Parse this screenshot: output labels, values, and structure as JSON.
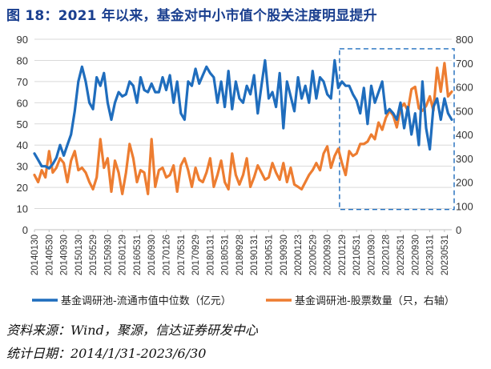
{
  "title": "图 18：2021 年以来，基金对中小市值个股关注度明显提升",
  "source": "资料来源：Wind，聚源，信达证券研发中心",
  "period": "统计日期：2014/1/31-2023/6/30",
  "colors": {
    "blue": "#1f6dbd",
    "orange": "#ed7d31",
    "highlight": "#1f6dbd"
  },
  "chart_data": {
    "type": "line",
    "title": "",
    "xlabel": "",
    "y_left": {
      "min": 0,
      "max": 90,
      "ticks": [
        0,
        10,
        20,
        30,
        40,
        50,
        60,
        70,
        80,
        90
      ]
    },
    "y_right": {
      "min": 0,
      "max": 800,
      "ticks": [
        0,
        100,
        200,
        300,
        400,
        500,
        600,
        700,
        800
      ]
    },
    "x_ticks": [
      "20140130",
      "20140530",
      "20140930",
      "20150130",
      "20150529",
      "20150930",
      "20160129",
      "20160531",
      "20160930",
      "20170126",
      "20170531",
      "20170929",
      "20180131",
      "20180531",
      "20180928",
      "20190131",
      "20190531",
      "20190930",
      "20200123",
      "20200529",
      "20200930",
      "20210129",
      "20210531",
      "20210930",
      "20220128",
      "20220531",
      "20220930",
      "20230131",
      "20230531"
    ],
    "x_tick_index": [
      0,
      4,
      8,
      12,
      16,
      20,
      24,
      28,
      32,
      36,
      40,
      44,
      48,
      52,
      56,
      60,
      64,
      68,
      72,
      76,
      80,
      84,
      88,
      92,
      96,
      100,
      104,
      108,
      112
    ],
    "highlight_range": [
      84,
      114
    ],
    "legend_position": "bottom",
    "series": [
      {
        "name": "基金调研池-流通市值中位数（亿元）",
        "axis": "left",
        "values": [
          36,
          33,
          30,
          30,
          29,
          31,
          34,
          40,
          35,
          40,
          45,
          56,
          70,
          77,
          70,
          60,
          57,
          72,
          68,
          74,
          60,
          52,
          60,
          65,
          63,
          64,
          70,
          68,
          60,
          72,
          66,
          65,
          69,
          65,
          65,
          72,
          66,
          73,
          60,
          70,
          55,
          52,
          70,
          68,
          76,
          69,
          73,
          77,
          74,
          72,
          60,
          70,
          58,
          75,
          57,
          70,
          62,
          60,
          68,
          64,
          73,
          55,
          68,
          80,
          62,
          65,
          58,
          74,
          48,
          70,
          63,
          56,
          72,
          62,
          68,
          60,
          75,
          62,
          72,
          70,
          64,
          62,
          80,
          67,
          70,
          68,
          68,
          64,
          61,
          55,
          67,
          50,
          68,
          60,
          65,
          70,
          55,
          57,
          55,
          52,
          60,
          48,
          58,
          45,
          55,
          40,
          70,
          48,
          38,
          58,
          62,
          52,
          62,
          55,
          52
        ]
      },
      {
        "name": "基金调研池-股票数量（只，右轴）",
        "axis": "right",
        "values": [
          230,
          200,
          250,
          220,
          330,
          240,
          260,
          300,
          280,
          200,
          290,
          330,
          250,
          260,
          240,
          200,
          170,
          220,
          380,
          260,
          300,
          160,
          290,
          240,
          150,
          240,
          360,
          300,
          200,
          250,
          240,
          150,
          380,
          180,
          250,
          260,
          220,
          230,
          270,
          160,
          270,
          300,
          250,
          180,
          260,
          210,
          200,
          240,
          300,
          180,
          230,
          290,
          200,
          170,
          320,
          230,
          190,
          230,
          300,
          180,
          220,
          270,
          240,
          210,
          220,
          280,
          240,
          210,
          280,
          200,
          260,
          190,
          180,
          170,
          200,
          230,
          250,
          280,
          250,
          320,
          350,
          260,
          310,
          340,
          280,
          230,
          330,
          310,
          320,
          360,
          360,
          370,
          400,
          380,
          450,
          420,
          470,
          500,
          480,
          430,
          510,
          530,
          500,
          590,
          600,
          510,
          500,
          520,
          560,
          500,
          680,
          580,
          700,
          560,
          580
        ]
      }
    ]
  }
}
